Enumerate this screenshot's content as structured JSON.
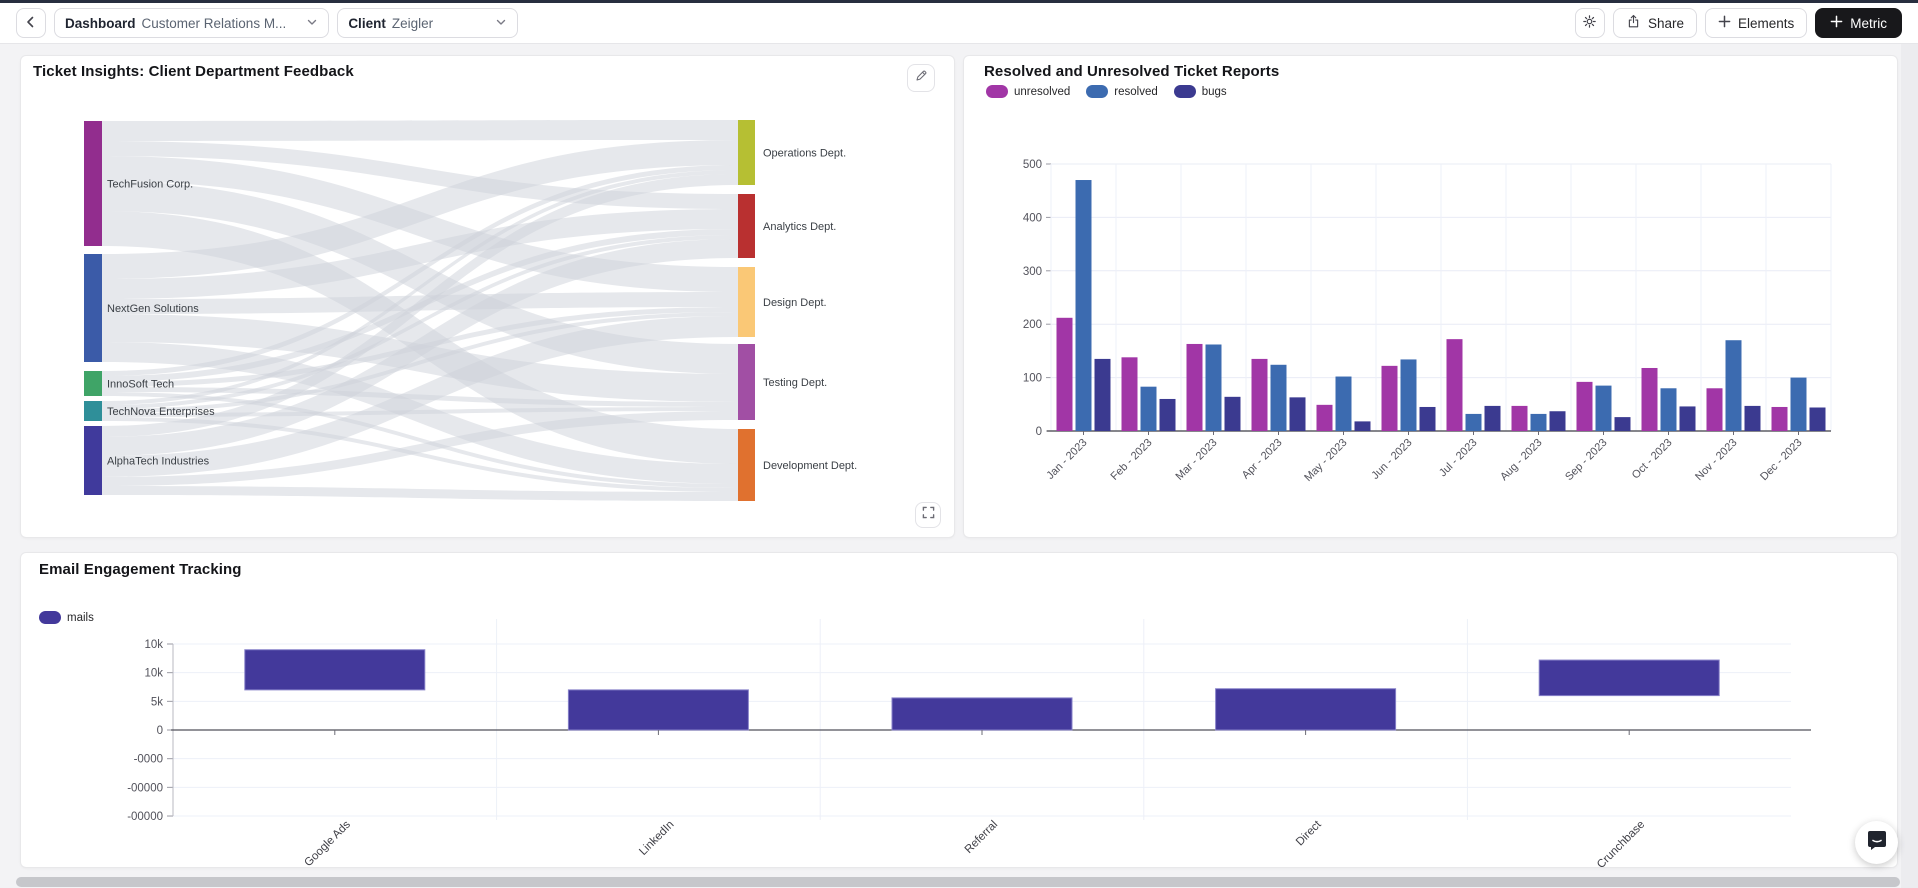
{
  "topbar": {
    "back_label": "back",
    "dashboard_label": "Dashboard",
    "dashboard_value": "Customer Relations M...",
    "client_label": "Client",
    "client_value": "Zeigler",
    "share_label": "Share",
    "elements_label": "Elements",
    "metric_label": "Metric"
  },
  "colors": {
    "metric_button": "#18181b",
    "unresolved": "#a136a6",
    "resolved": "#3c6bb0",
    "bugs": "#3b3a90",
    "mails": "#43399b",
    "sankey_link": "#cdd2d9",
    "grid": "#e9ecf6",
    "axis_text": "#52525b"
  },
  "chart_data": [
    {
      "type": "sankey",
      "title": "Ticket Insights: Client Department Feedback",
      "sources": [
        {
          "label": "TechFusion Corp.",
          "color": "#922d8e"
        },
        {
          "label": "NextGen Solutions",
          "color": "#3b5ba8"
        },
        {
          "label": "InnoSoft Tech",
          "color": "#3fa467"
        },
        {
          "label": "TechNova Enterprises",
          "color": "#2f8f99"
        },
        {
          "label": "AlphaTech Industries",
          "color": "#403a9c"
        }
      ],
      "targets": [
        {
          "label": "Operations Dept.",
          "color": "#b6bf33"
        },
        {
          "label": "Analytics Dept.",
          "color": "#b93030"
        },
        {
          "label": "Design Dept.",
          "color": "#fac876"
        },
        {
          "label": "Testing Dept.",
          "color": "#a14fa4"
        },
        {
          "label": "Development Dept.",
          "color": "#e0712f"
        }
      ],
      "links_note": "flow weights estimated from ribbon thickness",
      "links_matrix": [
        [
          20,
          15,
          25,
          30,
          35
        ],
        [
          25,
          20,
          15,
          28,
          20
        ],
        [
          5,
          6,
          5,
          5,
          4
        ],
        [
          4,
          4,
          4,
          4,
          4
        ],
        [
          11,
          19,
          21,
          9,
          9
        ]
      ]
    },
    {
      "type": "bar",
      "title": "Resolved and Unresolved Ticket Reports",
      "categories": [
        "Jan - 2023",
        "Feb - 2023",
        "Mar - 2023",
        "Apr - 2023",
        "May - 2023",
        "Jun - 2023",
        "Jul - 2023",
        "Aug - 2023",
        "Sep - 2023",
        "Oct - 2023",
        "Nov - 2023",
        "Dec - 2023"
      ],
      "series": [
        {
          "name": "unresolved",
          "color": "#a136a6",
          "values": [
            212,
            138,
            163,
            135,
            49,
            122,
            172,
            47,
            92,
            118,
            80,
            45
          ]
        },
        {
          "name": "resolved",
          "color": "#3c6bb0",
          "values": [
            470,
            83,
            162,
            124,
            102,
            134,
            32,
            32,
            85,
            80,
            170,
            100
          ]
        },
        {
          "name": "bugs",
          "color": "#3b3a90",
          "values": [
            135,
            60,
            64,
            63,
            18,
            45,
            47,
            37,
            26,
            46,
            47,
            44
          ]
        }
      ],
      "ylim": [
        0,
        500
      ],
      "yticks": [
        0,
        100,
        200,
        300,
        400,
        500
      ],
      "grid": true,
      "legend_position": "top-left"
    },
    {
      "type": "bar",
      "title": "Email Engagement Tracking",
      "categories": [
        "Google Ads",
        "LinkedIn",
        "Referral",
        "Direct",
        "Crunchbase"
      ],
      "series": [
        {
          "name": "mails",
          "color": "#43399b",
          "bar_ranges_note": "floating bars [from,to] estimated; axis tick labels are rendered broken in source app",
          "values_range": [
            [
              3500,
              7000
            ],
            [
              0,
              3500
            ],
            [
              0,
              2800
            ],
            [
              0,
              3600
            ],
            [
              3000,
              6100
            ]
          ]
        }
      ],
      "ytick_labels": [
        "10k",
        "10k",
        "5k",
        "0",
        "-0000",
        "-00000",
        "-00000"
      ],
      "units_per_tick": 2500,
      "zero_tick_index": 3,
      "grid": true,
      "legend_position": "top-left"
    }
  ]
}
